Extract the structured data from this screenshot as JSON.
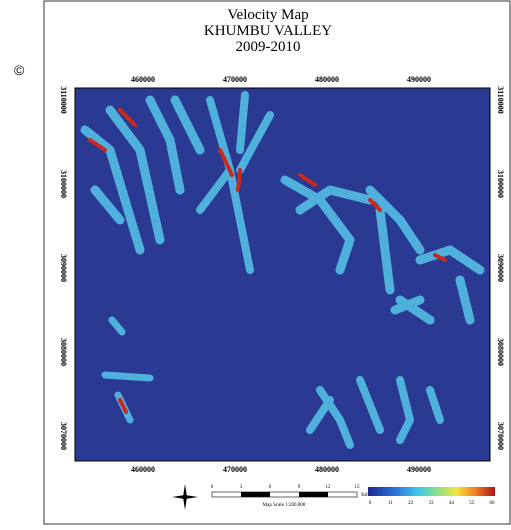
{
  "copyright": "©",
  "title": [
    "Velocity Map",
    "KHUMBU VALLEY",
    "2009-2010"
  ],
  "x_ticks": [
    "460000",
    "470000",
    "480000",
    "490000"
  ],
  "y_ticks": [
    "3110000",
    "3100000",
    "3090000",
    "3080000",
    "3070000"
  ],
  "scale_bar": {
    "ticks": [
      0,
      3,
      6,
      9,
      12,
      15
    ],
    "unit": "Km",
    "note": "Map Scale 1:200,000"
  },
  "legend": {
    "ticks": [
      0,
      11,
      22,
      33,
      44,
      55,
      66
    ]
  }
}
